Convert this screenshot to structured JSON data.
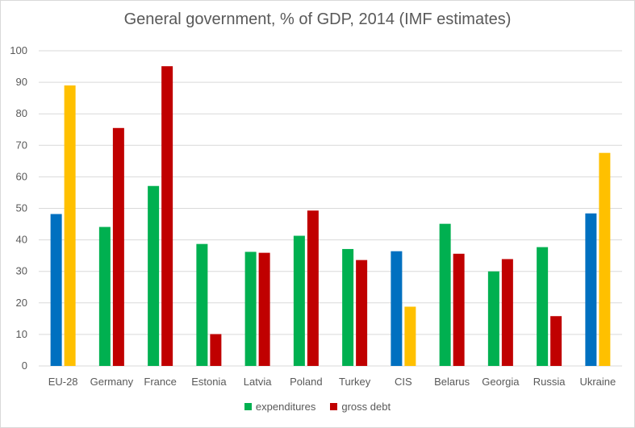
{
  "chart_data": {
    "type": "bar",
    "title": "General government, % of GDP, 2014 (IMF estimates)",
    "xlabel": "",
    "ylabel": "",
    "ylim": [
      0,
      100
    ],
    "yticks": [
      0,
      10,
      20,
      30,
      40,
      50,
      60,
      70,
      80,
      90,
      100
    ],
    "grid": true,
    "legend_position": "bottom",
    "categories": [
      "EU-28",
      "Germany",
      "France",
      "Estonia",
      "Latvia",
      "Poland",
      "Turkey",
      "CIS",
      "Belarus",
      "Georgia",
      "Russia",
      "Ukraine"
    ],
    "series": [
      {
        "name": "expenditures",
        "color": "#00b050",
        "values": [
          48.2,
          44.1,
          57.1,
          38.7,
          36.2,
          41.3,
          37.1,
          36.4,
          45.1,
          30.0,
          37.7,
          48.4
        ]
      },
      {
        "name": "gross debt",
        "color": "#c00000",
        "values": [
          89.0,
          75.5,
          95.1,
          10.1,
          35.9,
          49.3,
          33.6,
          18.8,
          35.6,
          33.9,
          15.8,
          67.6
        ]
      }
    ],
    "highlight_categories": [
      "EU-28",
      "CIS",
      "Ukraine"
    ],
    "highlight_colors": {
      "expenditures": "#0070c0",
      "gross debt": "#ffc000"
    }
  },
  "gridline_color": "#d9d9d9",
  "text_color": "#595959"
}
